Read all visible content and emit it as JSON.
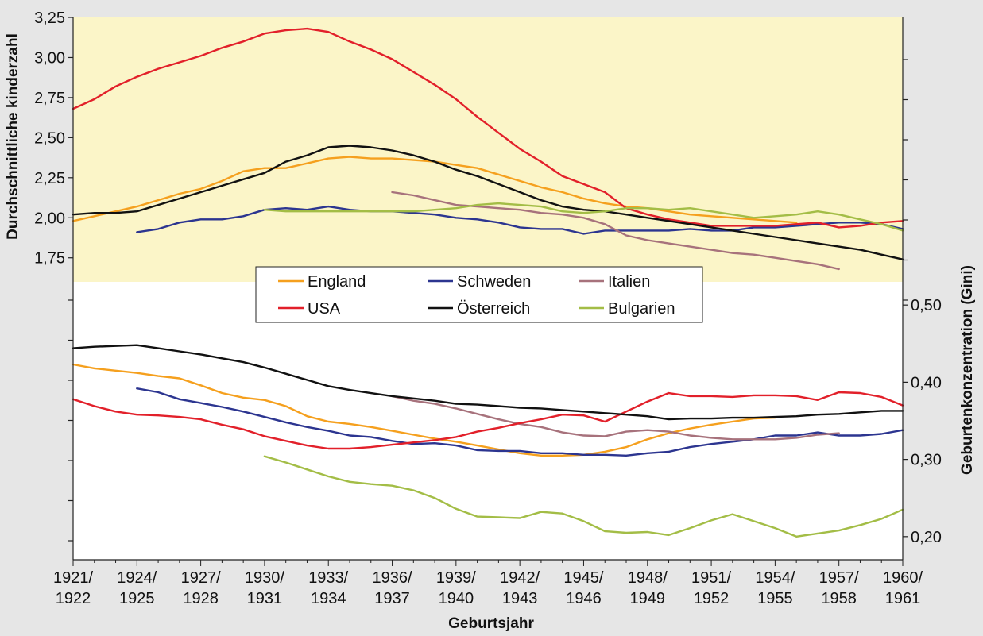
{
  "chart_data": {
    "type": "line",
    "xlabel": "Geburtsjahr",
    "x_ticks": [
      [
        "1921/",
        "1922"
      ],
      [
        "1924/",
        "1925"
      ],
      [
        "1927/",
        "1928"
      ],
      [
        "1930/",
        "1931"
      ],
      [
        "1933/",
        "1934"
      ],
      [
        "1936/",
        "1937"
      ],
      [
        "1939/",
        "1940"
      ],
      [
        "1942/",
        "1943"
      ],
      [
        "1945/",
        "1946"
      ],
      [
        "1948/",
        "1949"
      ],
      [
        "1951/",
        "1952"
      ],
      [
        "1954/",
        "1955"
      ],
      [
        "1957/",
        "1958"
      ],
      [
        "1960/",
        "1961"
      ]
    ],
    "xlim": [
      1921,
      1960
    ],
    "y_left": {
      "label": "Durchschnittliche kinderzahl",
      "ylim": [
        1.6,
        3.25
      ],
      "ticks": [
        "1,75",
        "2,00",
        "2,25",
        "2,50",
        "2,75",
        "3,00",
        "3,25"
      ],
      "tick_values": [
        1.75,
        2.0,
        2.25,
        2.5,
        2.75,
        3.0,
        3.25
      ]
    },
    "y_right": {
      "label": "Geburtenkonzentration (Gini)",
      "ylim": [
        0.17,
        0.53
      ],
      "ticks": [
        "0,20",
        "0,30",
        "0,40",
        "0,50"
      ],
      "tick_values": [
        0.2,
        0.3,
        0.4,
        0.5
      ]
    },
    "legend": {
      "placement": "center",
      "entries": [
        "England",
        "Schweden",
        "Italien",
        "USA",
        "Österreich",
        "Bulgarien"
      ]
    },
    "series": [
      {
        "name": "England",
        "color": "#f5a01e",
        "axis": "left",
        "x": [
          1921,
          1922,
          1923,
          1924,
          1925,
          1926,
          1927,
          1928,
          1929,
          1930,
          1931,
          1932,
          1933,
          1934,
          1935,
          1936,
          1937,
          1938,
          1939,
          1940,
          1941,
          1942,
          1943,
          1944,
          1945,
          1946,
          1947,
          1948,
          1949,
          1950,
          1951,
          1952,
          1953,
          1954,
          1955
        ],
        "y": [
          1.98,
          2.01,
          2.04,
          2.07,
          2.11,
          2.15,
          2.18,
          2.23,
          2.29,
          2.31,
          2.31,
          2.34,
          2.37,
          2.38,
          2.37,
          2.37,
          2.36,
          2.35,
          2.33,
          2.31,
          2.27,
          2.23,
          2.19,
          2.16,
          2.12,
          2.09,
          2.07,
          2.06,
          2.04,
          2.02,
          2.01,
          2.0,
          1.99,
          1.98,
          1.97
        ]
      },
      {
        "name": "Schweden",
        "color": "#2c3590",
        "axis": "left",
        "x": [
          1924,
          1925,
          1926,
          1927,
          1928,
          1929,
          1930,
          1931,
          1932,
          1933,
          1934,
          1935,
          1936,
          1937,
          1938,
          1939,
          1940,
          1941,
          1942,
          1943,
          1944,
          1945,
          1946,
          1947,
          1948,
          1949,
          1950,
          1951,
          1952,
          1953,
          1954,
          1955,
          1956,
          1957,
          1958,
          1959,
          1960
        ],
        "y": [
          1.91,
          1.93,
          1.97,
          1.99,
          1.99,
          2.01,
          2.05,
          2.06,
          2.05,
          2.07,
          2.05,
          2.04,
          2.04,
          2.03,
          2.02,
          2.0,
          1.99,
          1.97,
          1.94,
          1.93,
          1.93,
          1.9,
          1.92,
          1.92,
          1.92,
          1.92,
          1.93,
          1.92,
          1.92,
          1.94,
          1.94,
          1.95,
          1.96,
          1.97,
          1.97,
          1.96,
          1.93
        ]
      },
      {
        "name": "Italien",
        "color": "#a7727c",
        "axis": "left",
        "x": [
          1936,
          1937,
          1938,
          1939,
          1940,
          1941,
          1942,
          1943,
          1944,
          1945,
          1946,
          1947,
          1948,
          1949,
          1950,
          1951,
          1952,
          1953,
          1954,
          1955,
          1956,
          1957
        ],
        "y": [
          2.16,
          2.14,
          2.11,
          2.08,
          2.07,
          2.06,
          2.05,
          2.03,
          2.02,
          2.0,
          1.96,
          1.89,
          1.86,
          1.84,
          1.82,
          1.8,
          1.78,
          1.77,
          1.75,
          1.73,
          1.71,
          1.68
        ]
      },
      {
        "name": "USA",
        "color": "#e2202a",
        "axis": "left",
        "x": [
          1921,
          1922,
          1923,
          1924,
          1925,
          1926,
          1927,
          1928,
          1929,
          1930,
          1931,
          1932,
          1933,
          1934,
          1935,
          1936,
          1937,
          1938,
          1939,
          1940,
          1941,
          1942,
          1943,
          1944,
          1945,
          1946,
          1947,
          1948,
          1949,
          1950,
          1951,
          1952,
          1953,
          1954,
          1955,
          1956,
          1957,
          1958,
          1959,
          1960
        ],
        "y": [
          2.68,
          2.74,
          2.82,
          2.88,
          2.93,
          2.97,
          3.01,
          3.06,
          3.1,
          3.15,
          3.17,
          3.18,
          3.16,
          3.1,
          3.05,
          2.99,
          2.91,
          2.83,
          2.74,
          2.63,
          2.53,
          2.43,
          2.35,
          2.26,
          2.21,
          2.16,
          2.06,
          2.02,
          1.99,
          1.97,
          1.95,
          1.95,
          1.95,
          1.95,
          1.96,
          1.97,
          1.94,
          1.95,
          1.97,
          1.98
        ]
      },
      {
        "name": "Österreich",
        "color": "#111111",
        "axis": "left",
        "x": [
          1921,
          1922,
          1923,
          1924,
          1925,
          1926,
          1927,
          1928,
          1929,
          1930,
          1931,
          1932,
          1933,
          1934,
          1935,
          1936,
          1937,
          1938,
          1939,
          1940,
          1941,
          1942,
          1943,
          1944,
          1945,
          1946,
          1947,
          1948,
          1949,
          1950,
          1951,
          1952,
          1953,
          1954,
          1955,
          1956,
          1957,
          1958,
          1959,
          1960
        ],
        "y": [
          2.02,
          2.03,
          2.03,
          2.04,
          2.08,
          2.12,
          2.16,
          2.2,
          2.24,
          2.28,
          2.35,
          2.39,
          2.44,
          2.45,
          2.44,
          2.42,
          2.39,
          2.35,
          2.3,
          2.26,
          2.21,
          2.16,
          2.11,
          2.07,
          2.05,
          2.04,
          2.02,
          2.0,
          1.98,
          1.96,
          1.94,
          1.92,
          1.9,
          1.88,
          1.86,
          1.84,
          1.82,
          1.8,
          1.77,
          1.74
        ]
      },
      {
        "name": "Bulgarien",
        "color": "#a3bd46",
        "axis": "left",
        "x": [
          1930,
          1931,
          1932,
          1933,
          1934,
          1935,
          1936,
          1937,
          1938,
          1939,
          1940,
          1941,
          1942,
          1943,
          1944,
          1945,
          1946,
          1947,
          1948,
          1949,
          1950,
          1951,
          1952,
          1953,
          1954,
          1955,
          1956,
          1957,
          1958,
          1959,
          1960
        ],
        "y": [
          2.05,
          2.04,
          2.04,
          2.04,
          2.04,
          2.04,
          2.04,
          2.04,
          2.05,
          2.06,
          2.08,
          2.09,
          2.08,
          2.07,
          2.04,
          2.03,
          2.04,
          2.06,
          2.06,
          2.05,
          2.06,
          2.04,
          2.02,
          2.0,
          2.01,
          2.02,
          2.04,
          2.02,
          1.99,
          1.96,
          1.92
        ]
      },
      {
        "name": "England",
        "color": "#f5a01e",
        "axis": "right",
        "x": [
          1921,
          1922,
          1923,
          1924,
          1925,
          1926,
          1927,
          1928,
          1929,
          1930,
          1931,
          1932,
          1933,
          1934,
          1935,
          1936,
          1937,
          1938,
          1939,
          1940,
          1941,
          1942,
          1943,
          1944,
          1945,
          1946,
          1947,
          1948,
          1949,
          1950,
          1951,
          1952,
          1953,
          1954
        ],
        "y": [
          0.423,
          0.418,
          0.415,
          0.412,
          0.408,
          0.405,
          0.396,
          0.386,
          0.38,
          0.377,
          0.369,
          0.356,
          0.349,
          0.346,
          0.342,
          0.337,
          0.332,
          0.327,
          0.323,
          0.318,
          0.313,
          0.308,
          0.305,
          0.305,
          0.306,
          0.31,
          0.316,
          0.326,
          0.334,
          0.34,
          0.345,
          0.349,
          0.353,
          0.354
        ]
      },
      {
        "name": "Schweden",
        "color": "#2c3590",
        "axis": "right",
        "x": [
          1924,
          1925,
          1926,
          1927,
          1928,
          1929,
          1930,
          1931,
          1932,
          1933,
          1934,
          1935,
          1936,
          1937,
          1938,
          1939,
          1940,
          1941,
          1942,
          1943,
          1944,
          1945,
          1946,
          1947,
          1948,
          1949,
          1950,
          1951,
          1952,
          1953,
          1954,
          1955,
          1956,
          1957,
          1958,
          1959,
          1960
        ],
        "y": [
          0.392,
          0.387,
          0.378,
          0.373,
          0.368,
          0.362,
          0.355,
          0.348,
          0.342,
          0.337,
          0.331,
          0.329,
          0.324,
          0.32,
          0.321,
          0.318,
          0.312,
          0.311,
          0.311,
          0.308,
          0.308,
          0.306,
          0.306,
          0.305,
          0.308,
          0.31,
          0.316,
          0.32,
          0.323,
          0.326,
          0.331,
          0.331,
          0.335,
          0.331,
          0.331,
          0.333,
          0.338
        ]
      },
      {
        "name": "Italien",
        "color": "#a7727c",
        "axis": "right",
        "x": [
          1936,
          1937,
          1938,
          1939,
          1940,
          1941,
          1942,
          1943,
          1944,
          1945,
          1946,
          1947,
          1948,
          1949,
          1950,
          1951,
          1952,
          1953,
          1954,
          1955,
          1956,
          1957
        ],
        "y": [
          0.382,
          0.376,
          0.372,
          0.366,
          0.359,
          0.352,
          0.346,
          0.342,
          0.335,
          0.331,
          0.33,
          0.336,
          0.338,
          0.336,
          0.331,
          0.328,
          0.326,
          0.326,
          0.326,
          0.328,
          0.332,
          0.334
        ]
      },
      {
        "name": "USA",
        "color": "#e2202a",
        "axis": "right",
        "x": [
          1921,
          1922,
          1923,
          1924,
          1925,
          1926,
          1927,
          1928,
          1929,
          1930,
          1931,
          1932,
          1933,
          1934,
          1935,
          1936,
          1937,
          1938,
          1939,
          1940,
          1941,
          1942,
          1943,
          1944,
          1945,
          1946,
          1947,
          1948,
          1949,
          1950,
          1951,
          1952,
          1953,
          1954,
          1955,
          1956,
          1957,
          1958,
          1959,
          1960
        ],
        "y": [
          0.378,
          0.369,
          0.362,
          0.358,
          0.357,
          0.355,
          0.352,
          0.345,
          0.339,
          0.33,
          0.324,
          0.318,
          0.314,
          0.314,
          0.316,
          0.319,
          0.322,
          0.325,
          0.329,
          0.336,
          0.341,
          0.347,
          0.352,
          0.358,
          0.357,
          0.349,
          0.362,
          0.375,
          0.386,
          0.382,
          0.382,
          0.381,
          0.383,
          0.383,
          0.382,
          0.377,
          0.387,
          0.386,
          0.381,
          0.37
        ]
      },
      {
        "name": "Österreich",
        "color": "#111111",
        "axis": "right",
        "x": [
          1921,
          1922,
          1923,
          1924,
          1925,
          1926,
          1927,
          1928,
          1929,
          1930,
          1931,
          1932,
          1933,
          1934,
          1935,
          1936,
          1937,
          1938,
          1939,
          1940,
          1941,
          1942,
          1943,
          1944,
          1945,
          1946,
          1947,
          1948,
          1949,
          1950,
          1951,
          1952,
          1953,
          1954,
          1955,
          1956,
          1957,
          1958,
          1959,
          1960
        ],
        "y": [
          0.444,
          0.446,
          0.447,
          0.448,
          0.444,
          0.44,
          0.436,
          0.431,
          0.426,
          0.419,
          0.411,
          0.403,
          0.395,
          0.39,
          0.386,
          0.382,
          0.379,
          0.376,
          0.372,
          0.371,
          0.369,
          0.367,
          0.366,
          0.364,
          0.362,
          0.36,
          0.358,
          0.356,
          0.352,
          0.353,
          0.353,
          0.354,
          0.354,
          0.355,
          0.356,
          0.358,
          0.359,
          0.361,
          0.363,
          0.363
        ]
      },
      {
        "name": "Bulgarien",
        "color": "#a3bd46",
        "axis": "right",
        "x": [
          1930,
          1931,
          1932,
          1933,
          1934,
          1935,
          1936,
          1937,
          1938,
          1939,
          1940,
          1941,
          1942,
          1943,
          1944,
          1945,
          1946,
          1947,
          1948,
          1949,
          1950,
          1951,
          1952,
          1953,
          1954,
          1955,
          1956,
          1957,
          1958,
          1959,
          1960
        ],
        "y": [
          0.304,
          0.296,
          0.287,
          0.278,
          0.271,
          0.268,
          0.266,
          0.26,
          0.25,
          0.236,
          0.226,
          0.225,
          0.224,
          0.232,
          0.23,
          0.22,
          0.207,
          0.205,
          0.206,
          0.202,
          0.211,
          0.221,
          0.229,
          0.22,
          0.211,
          0.2,
          0.204,
          0.208,
          0.215,
          0.223,
          0.235
        ]
      }
    ],
    "upper_panel_fill": "#fbf5c8",
    "grid": false
  }
}
